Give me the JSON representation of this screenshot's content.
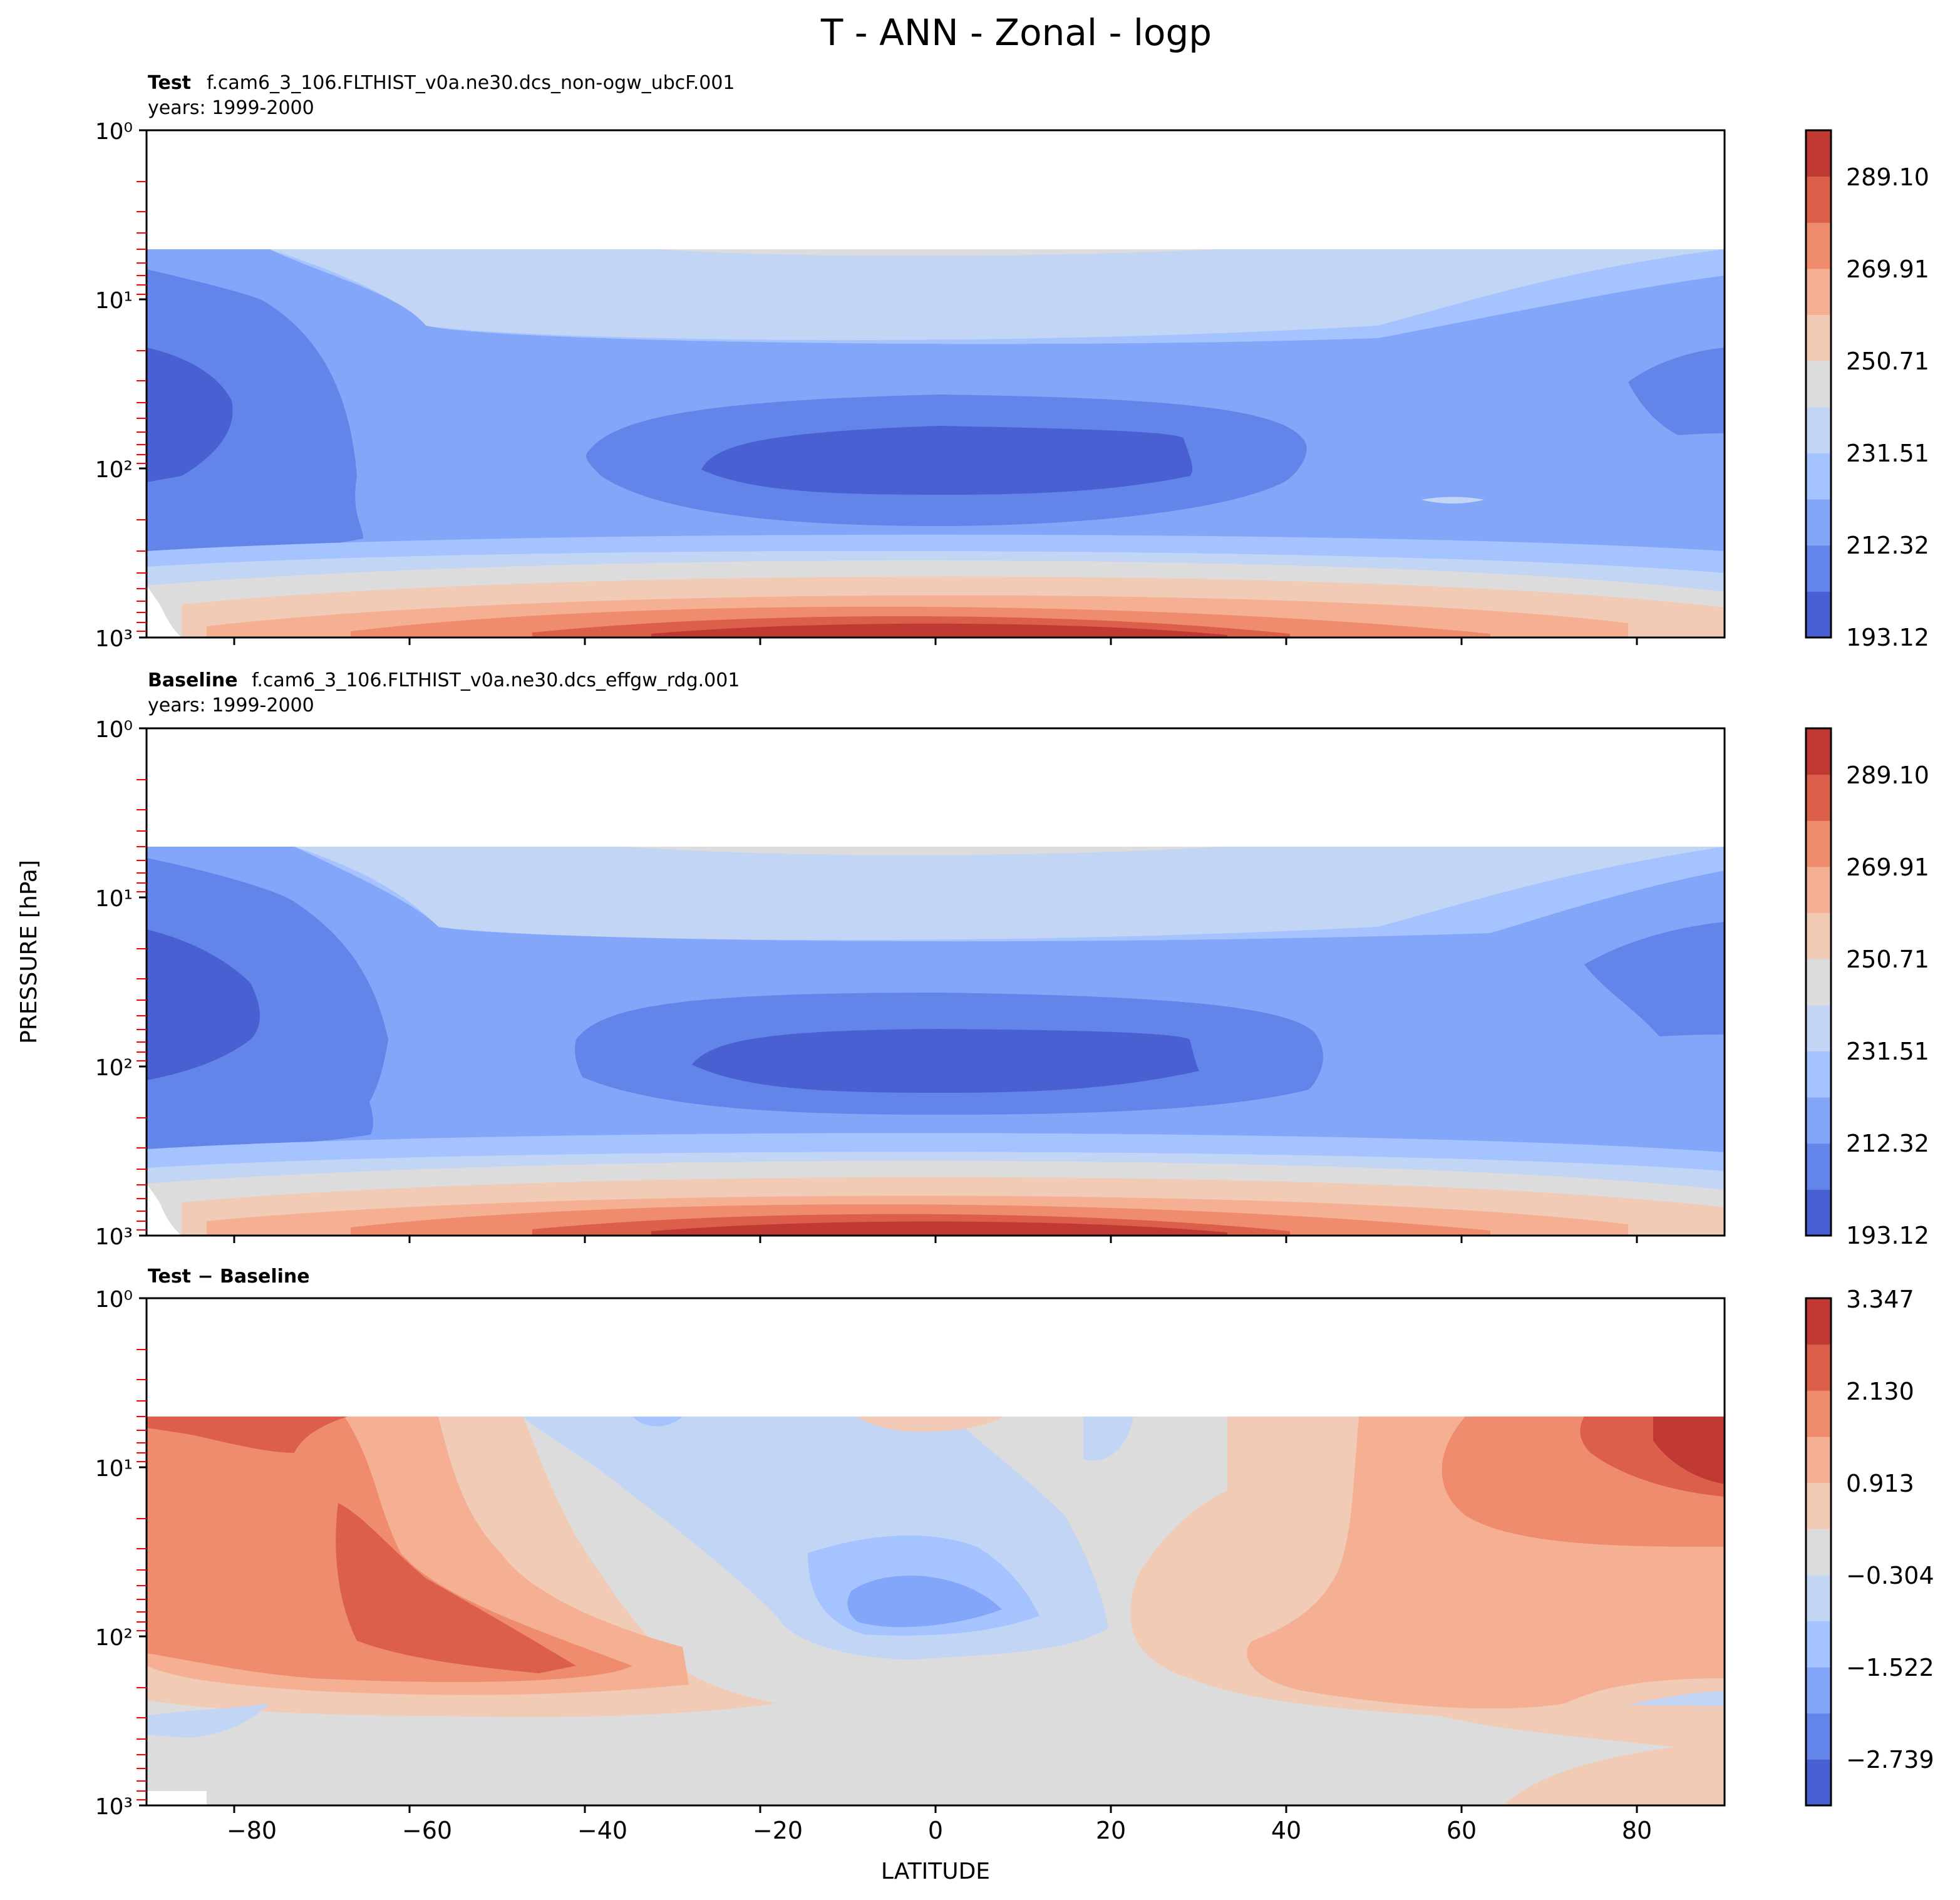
{
  "figure": {
    "title": "T - ANN - Zonal - logp",
    "xlabel": "LATITUDE",
    "ylabel": "PRESSURE [hPa]"
  },
  "chart_data": [
    {
      "type": "contour",
      "panel": "test",
      "title_bold": "Test",
      "case_name": "f.cam6_3_106.FLTHIST_v0a.ne30.dcs_non-ogw_ubcF.001",
      "years": "years: 1999-2000",
      "xlim": [
        -90,
        90
      ],
      "ylim_hpa": [
        1000,
        1
      ],
      "yscale": "log",
      "x_ticks": [
        "−80",
        "−60",
        "−40",
        "−20",
        "0",
        "20",
        "40",
        "60",
        "80"
      ],
      "y_ticks": [
        "10⁰",
        "10¹",
        "10²",
        "10³"
      ],
      "colorbar": {
        "range": [
          193.12,
          301.0
        ],
        "ticks": [
          "193.12",
          "212.32",
          "231.51",
          "250.71",
          "269.91",
          "289.10"
        ]
      },
      "model_top_hpa": 5
    },
    {
      "type": "contour",
      "panel": "baseline",
      "title_bold": "Baseline",
      "case_name": "f.cam6_3_106.FLTHIST_v0a.ne30.dcs_effgw_rdg.001",
      "years": "years: 1999-2000",
      "xlim": [
        -90,
        90
      ],
      "ylim_hpa": [
        1000,
        1
      ],
      "yscale": "log",
      "x_ticks": [
        "−80",
        "−60",
        "−40",
        "−20",
        "0",
        "20",
        "40",
        "60",
        "80"
      ],
      "y_ticks": [
        "10⁰",
        "10¹",
        "10²",
        "10³"
      ],
      "colorbar": {
        "range": [
          193.12,
          301.0
        ],
        "ticks": [
          "193.12",
          "212.32",
          "231.51",
          "250.71",
          "269.91",
          "289.10"
        ]
      },
      "model_top_hpa": 5
    },
    {
      "type": "contour",
      "panel": "difference",
      "title_bold": "Test − Baseline",
      "xlim": [
        -90,
        90
      ],
      "ylim_hpa": [
        1000,
        1
      ],
      "yscale": "log",
      "x_ticks": [
        "−80",
        "−60",
        "−40",
        "−20",
        "0",
        "20",
        "40",
        "60",
        "80"
      ],
      "y_ticks": [
        "10⁰",
        "10¹",
        "10²",
        "10³"
      ],
      "colorbar": {
        "range": [
          -3.348,
          3.347
        ],
        "ticks": [
          "−2.739",
          "−1.522",
          "−0.304",
          "0.913",
          "2.130",
          "3.347"
        ]
      },
      "model_top_hpa": 5
    }
  ],
  "colors": {
    "coolwarm": [
      "#4860d1",
      "#6384e8",
      "#84a6f8",
      "#a5c3fe",
      "#c3d5f4",
      "#dcdcdc",
      "#f2cbb7",
      "#f5b094",
      "#f08c6e",
      "#dc5f4b",
      "#c03a33"
    ]
  }
}
